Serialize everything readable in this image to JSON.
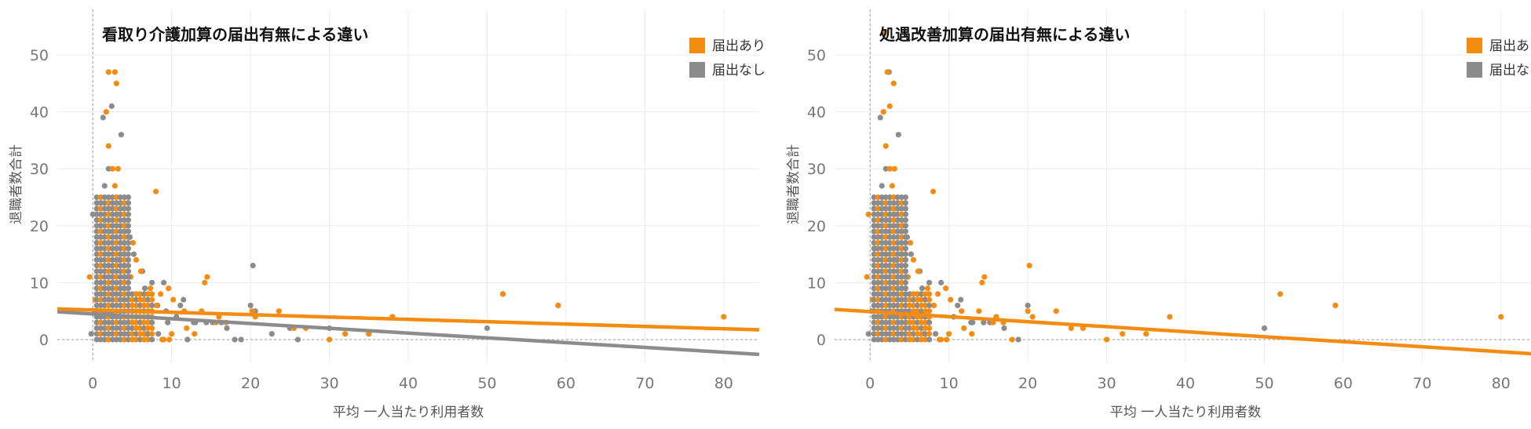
{
  "colors": {
    "filed": "#f58c12",
    "not_filed": "#8c8c8c"
  },
  "chart_data": [
    {
      "type": "scatter",
      "title": "看取り介護加算の届出有無による違い",
      "xlabel": "平均 一人当たり利用者数",
      "ylabel": "退職者数合計",
      "xlim": [
        -4.5,
        84.5
      ],
      "ylim": [
        -4,
        58
      ],
      "xticks": [
        0,
        10,
        20,
        30,
        40,
        50,
        60,
        70,
        80
      ],
      "yticks": [
        0,
        10,
        20,
        30,
        40,
        50
      ],
      "grid": true,
      "legend_position": "top-right",
      "series": [
        {
          "name": "届出あり",
          "color": "#f58c12",
          "points": [
            [
              2,
              47
            ],
            [
              2.8,
              47
            ],
            [
              1.7,
              40
            ],
            [
              3,
              45
            ],
            [
              2,
              34
            ],
            [
              2.5,
              30
            ],
            [
              3.2,
              30
            ],
            [
              2.8,
              27
            ],
            [
              8,
              26
            ],
            [
              2,
              22
            ],
            [
              3.1,
              22
            ],
            [
              4.2,
              20
            ],
            [
              5.1,
              17
            ],
            [
              5.5,
              14
            ],
            [
              6.1,
              12
            ],
            [
              4.8,
              11
            ],
            [
              7.3,
              9
            ],
            [
              9.6,
              9
            ],
            [
              14.5,
              11
            ],
            [
              14.2,
              10
            ],
            [
              8.6,
              8
            ],
            [
              10.2,
              7
            ],
            [
              8.1,
              6
            ],
            [
              11.6,
              5
            ],
            [
              13.8,
              5
            ],
            [
              16,
              4
            ],
            [
              16.9,
              3
            ],
            [
              15.6,
              3
            ],
            [
              20.2,
              5
            ],
            [
              20.6,
              4
            ],
            [
              23.6,
              5
            ],
            [
              25.5,
              2
            ],
            [
              27,
              2
            ],
            [
              30,
              0
            ],
            [
              32,
              1
            ],
            [
              35,
              1
            ],
            [
              38,
              4
            ],
            [
              52,
              8
            ],
            [
              59,
              6
            ],
            [
              80,
              4
            ],
            [
              11.9,
              2
            ],
            [
              10,
              1
            ],
            [
              8.8,
              0
            ],
            [
              12.9,
              1
            ],
            [
              -0.4,
              11
            ],
            [
              0.3,
              7
            ],
            [
              1,
              3
            ],
            [
              4.5,
              3
            ],
            [
              6.8,
              1
            ],
            [
              7.4,
              3
            ],
            [
              9,
              0
            ],
            [
              9.7,
              0
            ]
          ],
          "trend": [
            5.2,
            -0.0413
          ]
        },
        {
          "name": "届出なし",
          "color": "#8c8c8c",
          "points": [
            [
              1.3,
              39
            ],
            [
              2.4,
              41
            ],
            [
              3.6,
              36
            ],
            [
              2,
              30
            ],
            [
              1.5,
              27
            ],
            [
              0,
              22
            ],
            [
              0.5,
              16
            ],
            [
              4,
              16
            ],
            [
              4.7,
              18
            ],
            [
              5.2,
              15
            ],
            [
              6.3,
              12
            ],
            [
              7.5,
              10
            ],
            [
              6.6,
              9
            ],
            [
              8.2,
              6
            ],
            [
              9,
              10
            ],
            [
              9.3,
              5
            ],
            [
              11.1,
              6
            ],
            [
              11.5,
              7
            ],
            [
              12.8,
              3
            ],
            [
              14.4,
              3
            ],
            [
              15.2,
              3
            ],
            [
              16.3,
              3
            ],
            [
              17,
              2
            ],
            [
              18,
              0
            ],
            [
              18.8,
              0
            ],
            [
              20,
              6
            ],
            [
              20.3,
              13
            ],
            [
              20.6,
              5
            ],
            [
              22.7,
              1
            ],
            [
              25,
              2
            ],
            [
              26,
              0
            ],
            [
              30,
              2
            ],
            [
              35,
              1
            ],
            [
              38,
              4
            ],
            [
              50,
              2
            ],
            [
              52,
              8
            ],
            [
              59,
              6
            ],
            [
              0.2,
              5
            ],
            [
              -0.2,
              1
            ],
            [
              1,
              20
            ],
            [
              3.3,
              14
            ],
            [
              6,
              7
            ],
            [
              7,
              4
            ],
            [
              8.3,
              1
            ],
            [
              9.5,
              3
            ],
            [
              10.6,
              4
            ],
            [
              12,
              0
            ],
            [
              13,
              3
            ]
          ],
          "trend": [
            4.5,
            -0.084
          ]
        }
      ]
    },
    {
      "type": "scatter",
      "title": "処遇改善加算の届出有無による違い",
      "xlabel": "平均 一人当たり利用者数",
      "ylabel": "退職者数合計",
      "xlim": [
        -4.5,
        84.5
      ],
      "ylim": [
        -4,
        58
      ],
      "xticks": [
        0,
        10,
        20,
        30,
        40,
        50,
        60,
        70,
        80
      ],
      "yticks": [
        0,
        10,
        20,
        30,
        40,
        50
      ],
      "grid": true,
      "legend_position": "top-right",
      "series": [
        {
          "name": "届出あり",
          "color": "#f58c12",
          "points": [
            [
              2,
              54
            ],
            [
              2.2,
              47
            ],
            [
              1.7,
              40
            ],
            [
              2.5,
              41
            ],
            [
              3,
              45
            ],
            [
              2,
              34
            ],
            [
              2.5,
              30
            ],
            [
              3.1,
              30
            ],
            [
              2.8,
              27
            ],
            [
              8,
              26
            ],
            [
              2,
              22
            ],
            [
              -0.2,
              22
            ],
            [
              3.1,
              22
            ],
            [
              4.2,
              20
            ],
            [
              5.1,
              17
            ],
            [
              5.5,
              14
            ],
            [
              6.1,
              12
            ],
            [
              4.8,
              11
            ],
            [
              7.3,
              9
            ],
            [
              9.6,
              9
            ],
            [
              14.5,
              11
            ],
            [
              14.2,
              10
            ],
            [
              8.6,
              8
            ],
            [
              10.2,
              7
            ],
            [
              8.1,
              6
            ],
            [
              11.6,
              5
            ],
            [
              13.8,
              5
            ],
            [
              16,
              4
            ],
            [
              16.9,
              3
            ],
            [
              15.6,
              3
            ],
            [
              20.2,
              13
            ],
            [
              20.6,
              4
            ],
            [
              20,
              5
            ],
            [
              23.6,
              5
            ],
            [
              25.5,
              2
            ],
            [
              27,
              2
            ],
            [
              30,
              0
            ],
            [
              32,
              1
            ],
            [
              35,
              1
            ],
            [
              38,
              4
            ],
            [
              52,
              8
            ],
            [
              59,
              6
            ],
            [
              80,
              4
            ],
            [
              11.9,
              2
            ],
            [
              10,
              1
            ],
            [
              8.8,
              0
            ],
            [
              12.9,
              1
            ],
            [
              -0.4,
              11
            ],
            [
              0.3,
              7
            ],
            [
              1,
              3
            ],
            [
              4.5,
              3
            ],
            [
              6.8,
              1
            ],
            [
              7.4,
              3
            ],
            [
              9,
              0
            ],
            [
              9.7,
              0
            ],
            [
              18,
              0
            ]
          ],
          "trend": [
            4.9,
            -0.088
          ]
        },
        {
          "name": "届出なし",
          "color": "#8c8c8c",
          "points": [
            [
              1.3,
              39
            ],
            [
              2.4,
              47
            ],
            [
              3.6,
              36
            ],
            [
              2,
              30
            ],
            [
              1.5,
              27
            ],
            [
              0.6,
              16
            ],
            [
              4,
              16
            ],
            [
              4.7,
              18
            ],
            [
              5.2,
              15
            ],
            [
              6.3,
              12
            ],
            [
              7.5,
              10
            ],
            [
              6.6,
              9
            ],
            [
              9,
              10
            ],
            [
              11.1,
              6
            ],
            [
              11.5,
              7
            ],
            [
              12.8,
              3
            ],
            [
              14.4,
              3
            ],
            [
              15.2,
              3
            ],
            [
              17,
              2
            ],
            [
              18.8,
              0
            ],
            [
              20,
              6
            ],
            [
              50,
              2
            ],
            [
              0.2,
              5
            ],
            [
              -0.2,
              1
            ],
            [
              3.3,
              14
            ],
            [
              6,
              7
            ],
            [
              7,
              4
            ],
            [
              8.3,
              1
            ],
            [
              10.6,
              4
            ],
            [
              13,
              3
            ]
          ]
        }
      ]
    }
  ]
}
